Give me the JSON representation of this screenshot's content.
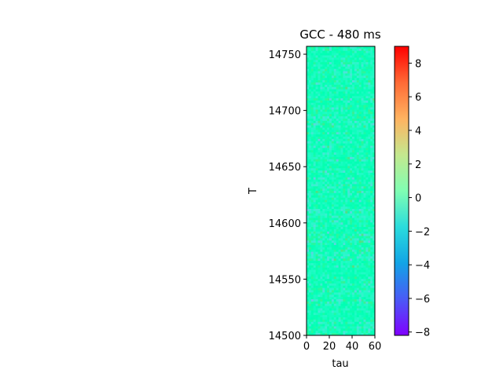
{
  "chart_data": {
    "type": "heatmap",
    "title": "GCC - 480 ms",
    "xlabel": "tau",
    "ylabel": "T",
    "xlim": [
      0,
      60
    ],
    "ylim": [
      14500,
      14757
    ],
    "x_ticks": [
      "0",
      "20",
      "40",
      "60"
    ],
    "y_ticks": [
      "14500",
      "14550",
      "14600",
      "14650",
      "14700",
      "14750"
    ],
    "colormap": "rainbow",
    "colorbar": {
      "min": -8.2,
      "max": 9.0,
      "ticks": [
        "−8",
        "−6",
        "−4",
        "−2",
        "0",
        "2",
        "4",
        "6",
        "8"
      ]
    },
    "value_summary": "values mostly near 0 (cyan-green), with scattered positive and negative fluctuations roughly between -3 and 3",
    "grid": false,
    "legend": "colorbar-right"
  }
}
